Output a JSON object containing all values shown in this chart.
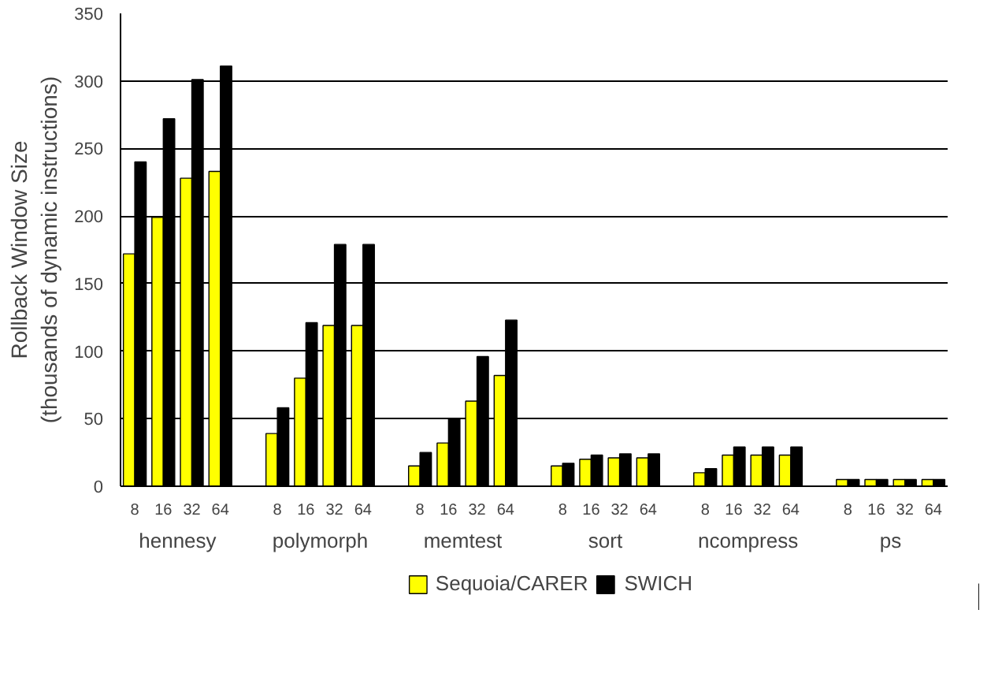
{
  "chart_data": {
    "type": "bar",
    "ylabel": "Rollback Window Size\n(thousands of dynamic instructions)",
    "categories": [
      "8",
      "16",
      "32",
      "64",
      null,
      "8",
      "16",
      "32",
      "64",
      null,
      "8",
      "16",
      "32",
      "64",
      null,
      "8",
      "16",
      "32",
      "64",
      null,
      "8",
      "16",
      "32",
      "64",
      null,
      "8",
      "16",
      "32",
      "64"
    ],
    "annotations": [
      "hennesy",
      "polymorph",
      "memtest",
      "sort",
      "ncompress",
      "ps"
    ],
    "series": [
      {
        "name": "Sequoia/CARER",
        "color": "#ffff00",
        "values": [
          172,
          199,
          228,
          233,
          null,
          39,
          80,
          119,
          119,
          null,
          15,
          32,
          63,
          82,
          null,
          15,
          20,
          21,
          21,
          null,
          10,
          23,
          23,
          23,
          null,
          5,
          5,
          5,
          5
        ]
      },
      {
        "name": "SWICH",
        "color": "#000000",
        "values": [
          240,
          272,
          301,
          311,
          null,
          58,
          121,
          179,
          179,
          null,
          25,
          50,
          96,
          123,
          null,
          17,
          23,
          24,
          24,
          null,
          13,
          29,
          29,
          29,
          null,
          5,
          5,
          5,
          5
        ]
      }
    ],
    "ylim": [
      0,
      350
    ],
    "yticks": [
      0,
      50,
      100,
      150,
      200,
      250,
      300,
      350
    ],
    "grid": "y",
    "legend": "bottom"
  }
}
